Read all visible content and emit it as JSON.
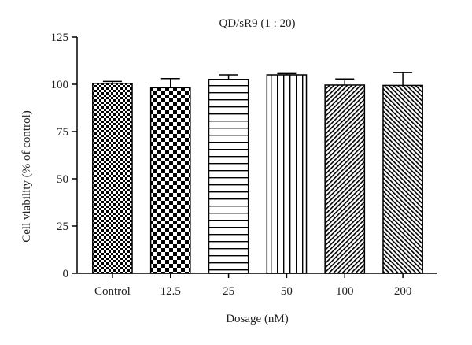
{
  "chart_data": {
    "type": "bar",
    "title": "QD/sR9 (1 : 20)",
    "xlabel": "Dosage (nM)",
    "ylabel": "Cell viability (% of control)",
    "categories": [
      "Control",
      "12.5",
      "25",
      "50",
      "100",
      "200"
    ],
    "values": [
      100.5,
      98.2,
      102.6,
      105.0,
      99.6,
      99.4
    ],
    "errors": [
      1.0,
      4.8,
      2.4,
      0.7,
      3.2,
      6.8
    ],
    "yticks": [
      0,
      25,
      50,
      75,
      100,
      125
    ],
    "ylim": [
      0,
      125
    ],
    "grid": false,
    "patterns": [
      "checker-small",
      "checker-large",
      "horizontal-lines",
      "vertical-lines",
      "diagonal-fine",
      "diagonal-wide"
    ],
    "colors": {
      "bar_fill": "#ffffff",
      "bar_stroke": "#000000",
      "axis": "#000000"
    }
  }
}
